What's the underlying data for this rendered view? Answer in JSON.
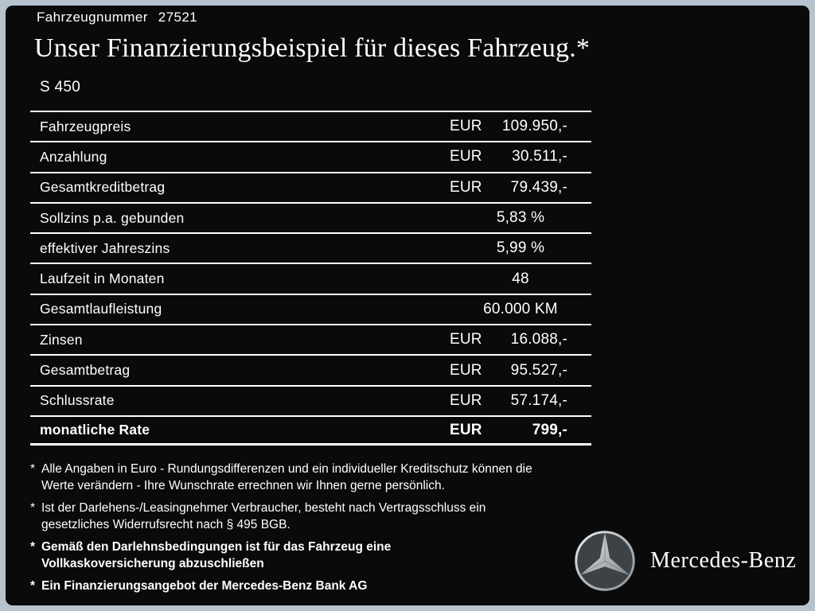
{
  "colors": {
    "frame": "#b6c3cf",
    "background": "#0a0a0b",
    "text": "#ffffff",
    "table_line": "#ffffff",
    "logo_circle_fill": "#3d4246",
    "logo_silver": "#c3c8cc"
  },
  "header": {
    "vehicle_number_label": "Fahrzeugnummer",
    "vehicle_number_value": "27521",
    "title": "Unser Finanzierungsbeispiel für dieses Fahrzeug.*",
    "model": "S 450"
  },
  "table": {
    "rows": [
      {
        "label": "Fahrzeugpreis",
        "currency": "EUR",
        "value": "109.950,-",
        "emphasis": false
      },
      {
        "label": "Anzahlung",
        "currency": "EUR",
        "value": "30.511,-",
        "emphasis": false
      },
      {
        "label": "Gesamtkreditbetrag",
        "currency": "EUR",
        "value": "79.439,-",
        "emphasis": false
      },
      {
        "label": "Sollzins p.a. gebunden",
        "currency": "",
        "value": "5,83 %",
        "emphasis": false
      },
      {
        "label": "effektiver Jahreszins",
        "currency": "",
        "value": "5,99 %",
        "emphasis": false
      },
      {
        "label": "Laufzeit in Monaten",
        "currency": "",
        "value": "48",
        "emphasis": false
      },
      {
        "label": "Gesamtlaufleistung",
        "currency": "",
        "value": "60.000 KM",
        "emphasis": false
      },
      {
        "label": "Zinsen",
        "currency": "EUR",
        "value": "16.088,-",
        "emphasis": false
      },
      {
        "label": "Gesamtbetrag",
        "currency": "EUR",
        "value": "95.527,-",
        "emphasis": false
      },
      {
        "label": "Schlussrate",
        "currency": "EUR",
        "value": "57.174,-",
        "emphasis": false
      },
      {
        "label": "monatliche Rate",
        "currency": "EUR",
        "value": "799,-",
        "emphasis": true
      }
    ]
  },
  "footnotes": [
    {
      "marker": "*",
      "bold": false,
      "text": "Alle Angaben in Euro - Rundungsdifferenzen und ein individueller Kreditschutz können die\nWerte verändern - Ihre Wunschrate errechnen wir Ihnen gerne persönlich."
    },
    {
      "marker": "*",
      "bold": false,
      "text": "Ist der Darlehens-/Leasingnehmer Verbraucher, besteht nach Vertragsschluss ein\ngesetzliches Widerrufsrecht nach § 495 BGB."
    },
    {
      "marker": "*",
      "bold": true,
      "text": "Gemäß den Darlehnsbedingungen ist für das Fahrzeug eine\nVollkaskoversicherung abzuschließen"
    },
    {
      "marker": "*",
      "bold": true,
      "text": "Ein Finanzierungsangebot der Mercedes-Benz Bank AG"
    }
  ],
  "brand": {
    "wordmark": "Mercedes-Benz"
  }
}
